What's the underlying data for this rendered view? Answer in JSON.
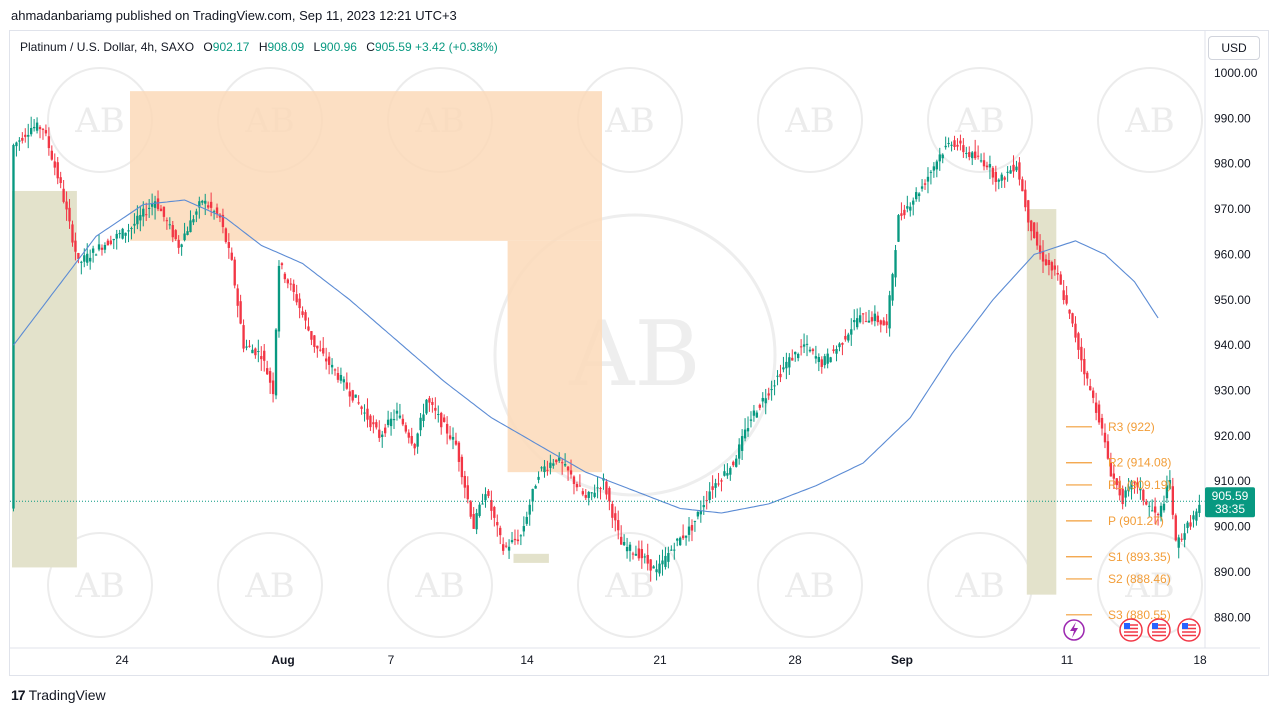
{
  "header": {
    "published": "ahmadanbariamg published on TradingView.com, Sep 11, 2023 12:21 UTC+3"
  },
  "legend": {
    "symbol": "Platinum / U.S. Dollar, 4h, SAXO",
    "o_label": "O",
    "o_value": "902.17",
    "h_label": "H",
    "h_value": "908.09",
    "l_label": "L",
    "l_value": "900.96",
    "c_label": "C",
    "c_value": "905.59",
    "change": "+3.42 (+0.38%)"
  },
  "currency_button": "USD",
  "footer": {
    "brand": "TradingView",
    "logo_mark": "17"
  },
  "watermark_text": "AB",
  "colors": {
    "up": "#089981",
    "down": "#f23645",
    "ma": "#5b8bd4",
    "supply_zone": "#fcd9b8",
    "demand_zone": "#e3e2cb",
    "pivot": "#f29d38",
    "price_tag": "#089981"
  },
  "icons": {
    "lightning": "lightning-icon",
    "flag": "us-flag-icon"
  },
  "chart_data": {
    "type": "candlestick",
    "y_axis": {
      "min": 875,
      "max": 1000,
      "ticks": [
        "1000.00",
        "990.00",
        "980.00",
        "970.00",
        "960.00",
        "950.00",
        "940.00",
        "930.00",
        "920.00",
        "910.00",
        "900.00",
        "890.00",
        "880.00"
      ]
    },
    "x_axis": {
      "ticks": [
        "24",
        "Aug",
        "7",
        "14",
        "21",
        "28",
        "Sep",
        "11",
        "18"
      ]
    },
    "last_price": "905.59",
    "countdown": "38:35",
    "pivots": [
      {
        "label": "R3",
        "text": "(922)",
        "value": 922
      },
      {
        "label": "R2",
        "text": "(914.08)",
        "value": 914.08
      },
      {
        "label": "R1",
        "text": "(909.19)",
        "value": 909.19
      },
      {
        "label": "P",
        "text": "(901.27)",
        "value": 901.27
      },
      {
        "label": "S1",
        "text": "(893.35)",
        "value": 893.35
      },
      {
        "label": "S2",
        "text": "(888.46)",
        "value": 888.46
      },
      {
        "label": "S3",
        "text": "(880.55)",
        "value": 880.55
      }
    ],
    "price_anchors": [
      [
        0,
        984
      ],
      [
        6,
        988
      ],
      [
        10,
        988
      ],
      [
        16,
        975
      ],
      [
        22,
        958
      ],
      [
        30,
        962
      ],
      [
        40,
        966
      ],
      [
        48,
        972
      ],
      [
        56,
        962
      ],
      [
        64,
        972
      ],
      [
        70,
        968
      ],
      [
        74,
        958
      ],
      [
        78,
        940
      ],
      [
        84,
        938
      ],
      [
        88,
        930
      ],
      [
        90,
        958
      ],
      [
        96,
        950
      ],
      [
        102,
        940
      ],
      [
        108,
        935
      ],
      [
        116,
        928
      ],
      [
        124,
        920
      ],
      [
        130,
        925
      ],
      [
        136,
        918
      ],
      [
        140,
        928
      ],
      [
        146,
        922
      ],
      [
        150,
        918
      ],
      [
        156,
        900
      ],
      [
        160,
        908
      ],
      [
        166,
        895
      ],
      [
        172,
        898
      ],
      [
        178,
        912
      ],
      [
        184,
        915
      ],
      [
        188,
        912
      ],
      [
        194,
        906
      ],
      [
        200,
        910
      ],
      [
        206,
        896
      ],
      [
        212,
        894
      ],
      [
        218,
        890
      ],
      [
        224,
        896
      ],
      [
        230,
        900
      ],
      [
        236,
        908
      ],
      [
        244,
        914
      ],
      [
        250,
        924
      ],
      [
        256,
        930
      ],
      [
        262,
        936
      ],
      [
        268,
        940
      ],
      [
        274,
        936
      ],
      [
        280,
        940
      ],
      [
        286,
        946
      ],
      [
        292,
        946
      ],
      [
        296,
        944
      ],
      [
        300,
        968
      ],
      [
        308,
        975
      ],
      [
        314,
        982
      ],
      [
        318,
        985
      ],
      [
        324,
        982
      ],
      [
        330,
        980
      ],
      [
        334,
        976
      ],
      [
        340,
        980
      ],
      [
        344,
        968
      ],
      [
        348,
        960
      ],
      [
        354,
        955
      ],
      [
        360,
        942
      ],
      [
        364,
        932
      ],
      [
        368,
        924
      ],
      [
        372,
        912
      ],
      [
        376,
        906
      ],
      [
        380,
        910
      ],
      [
        384,
        905
      ],
      [
        388,
        902
      ],
      [
        392,
        910
      ],
      [
        394,
        896
      ],
      [
        398,
        900
      ],
      [
        402,
        904
      ]
    ],
    "moving_average_anchors": [
      [
        0,
        940
      ],
      [
        14,
        952
      ],
      [
        28,
        964
      ],
      [
        44,
        971
      ],
      [
        58,
        972
      ],
      [
        72,
        968
      ],
      [
        84,
        962
      ],
      [
        98,
        958
      ],
      [
        114,
        950
      ],
      [
        130,
        941
      ],
      [
        146,
        932
      ],
      [
        162,
        924
      ],
      [
        178,
        918
      ],
      [
        194,
        912
      ],
      [
        210,
        908
      ],
      [
        226,
        904
      ],
      [
        240,
        903
      ],
      [
        256,
        905
      ],
      [
        272,
        909
      ],
      [
        288,
        914
      ],
      [
        304,
        924
      ],
      [
        318,
        938
      ],
      [
        332,
        950
      ],
      [
        346,
        960
      ],
      [
        360,
        963
      ],
      [
        370,
        960
      ],
      [
        380,
        954
      ],
      [
        388,
        946
      ]
    ],
    "supply_zones": [
      {
        "bars": [
          40,
          200
        ],
        "top": 996,
        "bottom": 963
      },
      {
        "bars": [
          168,
          200
        ],
        "top": 963,
        "bottom": 912
      }
    ],
    "demand_zones": [
      {
        "bars": [
          0,
          22
        ],
        "top": 974,
        "bottom": 891
      },
      {
        "bars": [
          170,
          182
        ],
        "top": 894,
        "bottom": 892
      },
      {
        "bars": [
          344,
          354
        ],
        "top": 970,
        "bottom": 885
      }
    ]
  }
}
